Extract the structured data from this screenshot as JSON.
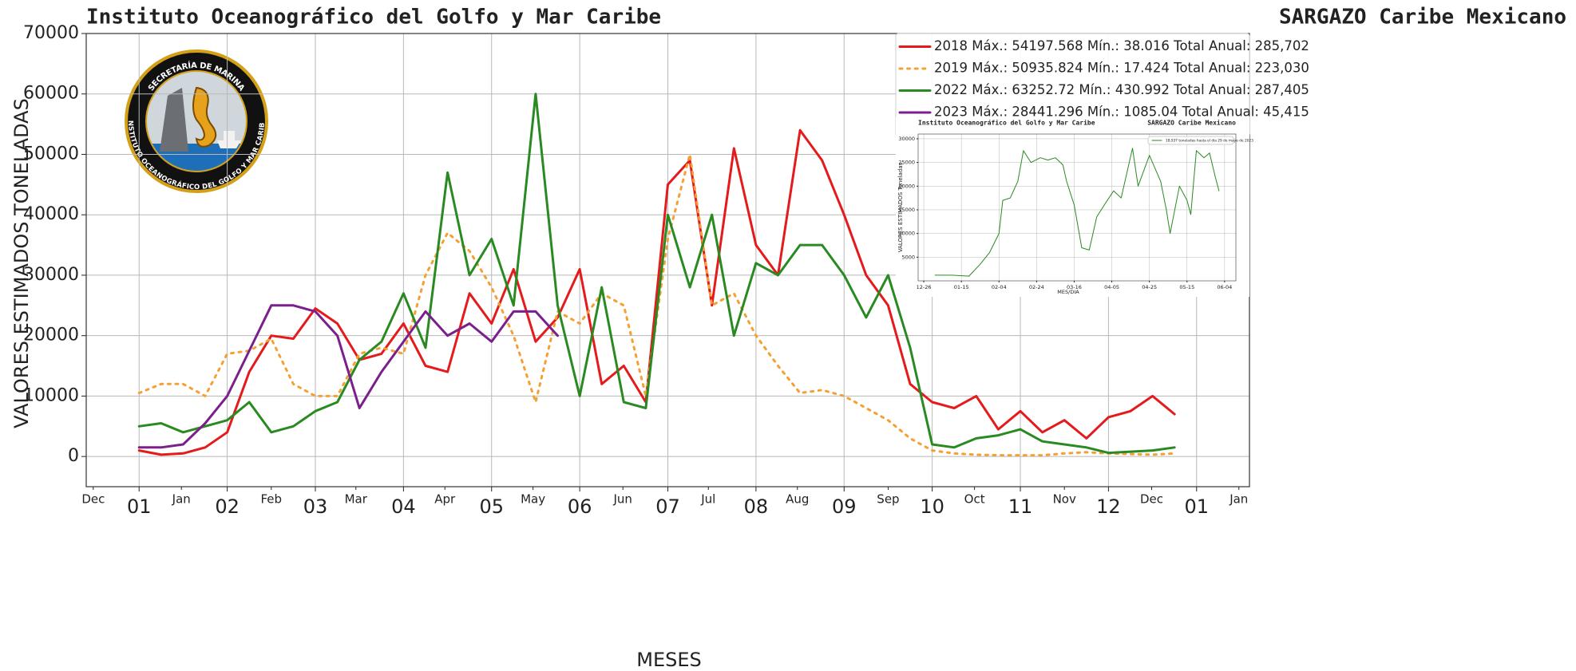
{
  "logo": {
    "top": "SECRETARÍA DE MARINA",
    "ring": "INSTITUTO OCEANOGRÁFICO DEL GOLFO Y MAR CARIBE"
  },
  "chart_data": [
    {
      "type": "line",
      "title": "Instituto Oceanográfico del Golfo y Mar Caribe",
      "title_right": "SARGAZO Caribe Mexicano",
      "x_label": "MESES",
      "y_label": "VALORES ESTIMADOS TONELADAS",
      "xlim": [
        -0.6,
        12.6
      ],
      "ylim": [
        -5000,
        70000
      ],
      "yticks": [
        0,
        10000,
        20000,
        30000,
        40000,
        50000,
        60000,
        70000
      ],
      "xticks": [
        {
          "value": 0,
          "label": "01"
        },
        {
          "value": 1,
          "label": "02"
        },
        {
          "value": 2,
          "label": "03"
        },
        {
          "value": 3,
          "label": "04"
        },
        {
          "value": 4,
          "label": "05"
        },
        {
          "value": 5,
          "label": "06"
        },
        {
          "value": 6,
          "label": "07"
        },
        {
          "value": 7,
          "label": "08"
        },
        {
          "value": 8,
          "label": "09"
        },
        {
          "value": 9,
          "label": "10"
        },
        {
          "value": 10,
          "label": "11"
        },
        {
          "value": 11,
          "label": "12"
        },
        {
          "value": 12,
          "label": "01"
        }
      ],
      "xticks_minor": [
        {
          "value": -0.52,
          "label": "Dec"
        },
        {
          "value": 0.48,
          "label": "Jan"
        },
        {
          "value": 1.5,
          "label": "Feb"
        },
        {
          "value": 2.46,
          "label": "Mar"
        },
        {
          "value": 3.47,
          "label": "Apr"
        },
        {
          "value": 4.47,
          "label": "May"
        },
        {
          "value": 5.49,
          "label": "Jun"
        },
        {
          "value": 6.46,
          "label": "Jul"
        },
        {
          "value": 7.47,
          "label": "Aug"
        },
        {
          "value": 8.5,
          "label": "Sep"
        },
        {
          "value": 9.48,
          "label": "Oct"
        },
        {
          "value": 10.5,
          "label": "Nov"
        },
        {
          "value": 11.49,
          "label": "Dec"
        },
        {
          "value": 12.48,
          "label": "Jan"
        }
      ],
      "grid": true,
      "legend": "upper right",
      "x": [
        0,
        0.25,
        0.5,
        0.75,
        1,
        1.25,
        1.5,
        1.75,
        2,
        2.25,
        2.5,
        2.75,
        3,
        3.25,
        3.5,
        3.75,
        4,
        4.25,
        4.5,
        4.75,
        5,
        5.25,
        5.5,
        5.75,
        6,
        6.25,
        6.5,
        6.75,
        7,
        7.25,
        7.5,
        7.75,
        8,
        8.25,
        8.5,
        8.75,
        9,
        9.25,
        9.5,
        9.75,
        10,
        10.25,
        10.5,
        10.75,
        11,
        11.25,
        11.5,
        11.75
      ],
      "series": [
        {
          "name": "2018 Máx.: 54197.568 Mín.: 38.016   Total Anual: 285,702",
          "color": "#e41a1c",
          "dash": false,
          "values": [
            1000,
            300,
            500,
            1500,
            4000,
            14000,
            20000,
            19500,
            24500,
            22000,
            16000,
            17000,
            22000,
            15000,
            14000,
            27000,
            22000,
            31000,
            19000,
            23000,
            31000,
            12000,
            15000,
            9000,
            45000,
            49000,
            25000,
            51000,
            35000,
            30000,
            54000,
            49000,
            40000,
            30000,
            25000,
            12000,
            9000,
            8000,
            10000,
            4500,
            7500,
            4000,
            6000,
            3000,
            6500,
            7500,
            10000,
            7000
          ]
        },
        {
          "name": "2019 Máx.: 50935.824 Mín.: 17.424   Total Anual:  223,030",
          "color": "#f5a034",
          "dash": true,
          "values": [
            10500,
            12000,
            12000,
            10000,
            17000,
            17500,
            19500,
            12000,
            10000,
            10000,
            17000,
            18000,
            17000,
            30000,
            37000,
            34000,
            28000,
            20000,
            9000,
            24000,
            22000,
            27000,
            25000,
            10000,
            36000,
            50000,
            25000,
            27000,
            20000,
            15000,
            10500,
            11000,
            10000,
            8000,
            6000,
            3000,
            1000,
            500,
            300,
            200,
            200,
            200,
            500,
            700,
            500,
            400,
            300,
            500
          ]
        },
        {
          "name": "2022 Máx.: 63252.72  Mín.:  430.992  Total Anual: 287,405",
          "color": "#2a8a22",
          "dash": false,
          "values": [
            5000,
            5500,
            4000,
            5000,
            6000,
            9000,
            4000,
            5000,
            7500,
            9000,
            16000,
            19000,
            27000,
            18000,
            47000,
            30000,
            36000,
            25000,
            60000,
            25000,
            10000,
            28000,
            9000,
            8000,
            40000,
            28000,
            40000,
            20000,
            32000,
            30000,
            35000,
            35000,
            30000,
            23000,
            30000,
            18000,
            2000,
            1500,
            3000,
            3500,
            4500,
            2500,
            2000,
            1500,
            600,
            800,
            1000,
            1500
          ]
        },
        {
          "name": "2023 Máx.: 28441.296 Mín.: 1085.04 Total Anual: 45,415",
          "color": "#7b1f8c",
          "dash": false,
          "values": [
            1500,
            1500,
            2000,
            5500,
            10000,
            17500,
            25000,
            25000,
            24000,
            20000,
            8000,
            14000,
            19000,
            24000,
            20000,
            22000,
            19000,
            24000,
            24000,
            20000,
            null,
            null,
            null,
            null,
            null,
            null,
            null,
            null,
            null,
            null,
            null,
            null,
            null,
            null,
            null,
            null,
            null,
            null,
            null,
            null,
            null,
            null,
            null,
            null,
            null,
            null,
            null,
            null
          ]
        }
      ]
    },
    {
      "type": "line",
      "title": "Instituto Oceanográfico del Golfo y Mar Caribe",
      "title_right": "SARGAZO Caribe Mexicano",
      "x_label": "MES/DIA",
      "y_label": "VALORES ESTIMADOS Toneladas",
      "xlim": [
        -3,
        166
      ],
      "ylim": [
        0,
        31000
      ],
      "yticks": [
        5000,
        10000,
        15000,
        20000,
        25000,
        30000
      ],
      "xticks": [
        {
          "value": 0,
          "label": "12-26"
        },
        {
          "value": 20,
          "label": "01-15"
        },
        {
          "value": 40,
          "label": "02-04"
        },
        {
          "value": 60,
          "label": "02-24"
        },
        {
          "value": 80,
          "label": "03-16"
        },
        {
          "value": 100,
          "label": "04-05"
        },
        {
          "value": 120,
          "label": "04-25"
        },
        {
          "value": 140,
          "label": "05-15"
        },
        {
          "value": 160,
          "label": "06-04"
        }
      ],
      "grid": true,
      "legend": "upper right",
      "x": [
        6,
        15,
        24,
        30,
        35,
        40,
        42,
        46,
        50,
        53,
        57,
        62,
        66,
        70,
        74,
        76,
        80,
        84,
        88,
        92,
        96,
        101,
        105,
        111,
        114,
        120,
        126,
        129,
        131,
        136,
        140,
        142,
        145,
        149,
        152,
        155,
        157
      ],
      "series": [
        {
          "name": "18,937 toneladas hasta el día 29 de mayo de 2023",
          "color": "#2a8a22",
          "dash": false,
          "values": [
            1200,
            1200,
            1000,
            3500,
            6000,
            10000,
            17000,
            17500,
            21000,
            27500,
            25000,
            26000,
            25500,
            26000,
            24500,
            21000,
            16000,
            7000,
            6500,
            13500,
            16000,
            19000,
            17500,
            28000,
            20000,
            26500,
            21000,
            15000,
            10000,
            20000,
            17000,
            14000,
            27500,
            26000,
            27000,
            22000,
            19000
          ]
        }
      ]
    }
  ]
}
